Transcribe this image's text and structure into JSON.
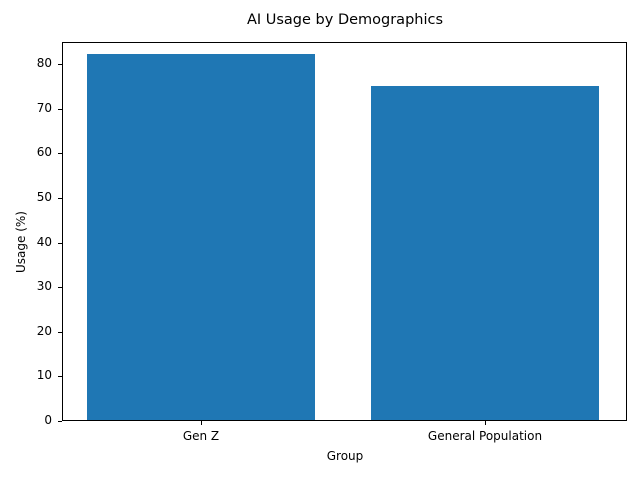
{
  "chart_data": {
    "type": "bar",
    "title": "AI Usage by Demographics",
    "xlabel": "Group",
    "ylabel": "Usage (%)",
    "categories": [
      "Gen Z",
      "General Population"
    ],
    "values": [
      82,
      75
    ],
    "ylim": [
      0,
      85
    ],
    "yticks": [
      0,
      10,
      20,
      30,
      40,
      50,
      60,
      70,
      80
    ],
    "grid": false,
    "legend": null,
    "bar_color": "#1f77b4"
  }
}
